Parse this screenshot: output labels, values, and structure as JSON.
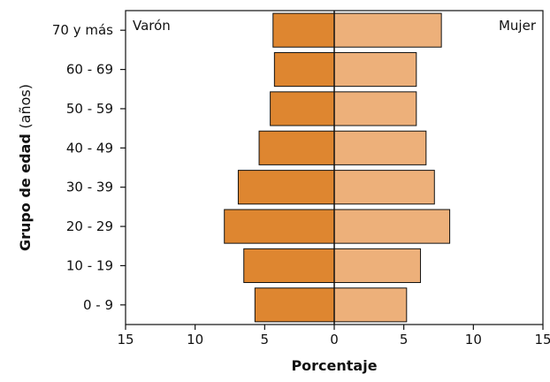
{
  "chart_data": {
    "type": "bar",
    "orientation": "horizontal",
    "subtype": "population-pyramid",
    "categories": [
      "0 - 9",
      "10 - 19",
      "20 - 29",
      "30 - 39",
      "40 - 49",
      "50 - 59",
      "60 - 69",
      "70 y más"
    ],
    "series": [
      {
        "name": "Varón",
        "side": "left",
        "color": "#de8630",
        "values": [
          5.7,
          6.5,
          7.9,
          6.9,
          5.4,
          4.6,
          4.3,
          4.4
        ]
      },
      {
        "name": "Mujer",
        "side": "right",
        "color": "#edb07a",
        "values": [
          5.2,
          6.2,
          8.3,
          7.2,
          6.6,
          5.9,
          5.9,
          7.7
        ]
      }
    ],
    "xlabel": "Porcentaje",
    "ylabel": "Grupo de edad (años)",
    "xticks": [
      15,
      10,
      5,
      0,
      5,
      10,
      15
    ],
    "xlim": [
      -15,
      15
    ],
    "grid": false,
    "legend": "inside-top-corners",
    "bar_outline_color": "#111111",
    "axis_color": "#111111"
  }
}
